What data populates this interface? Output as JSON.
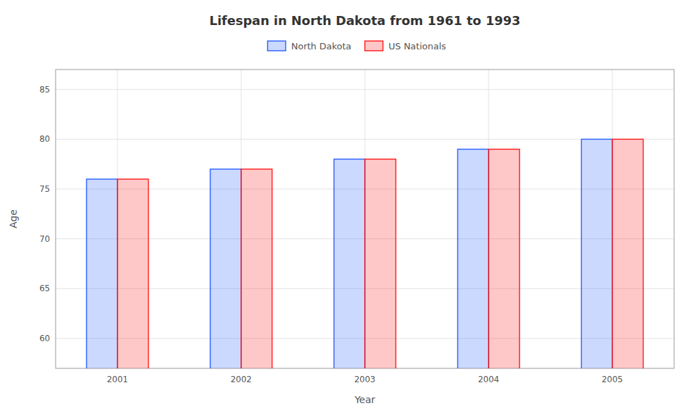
{
  "chart_data": {
    "type": "bar",
    "title": "Lifespan in North Dakota from 1961 to 1993",
    "xlabel": "Year",
    "ylabel": "Age",
    "categories": [
      "2001",
      "2002",
      "2003",
      "2004",
      "2005"
    ],
    "series": [
      {
        "name": "North Dakota",
        "color": "#3366ff",
        "values": [
          76.0,
          77.0,
          78.0,
          79.0,
          80.0
        ]
      },
      {
        "name": "US Nationals",
        "color": "#ff2222",
        "values": [
          76.0,
          77.0,
          78.0,
          79.0,
          80.0
        ]
      }
    ],
    "ylim": [
      57,
      87
    ],
    "yticks": [
      60,
      65,
      70,
      75,
      80,
      85
    ],
    "grid": true,
    "legend": "top"
  }
}
